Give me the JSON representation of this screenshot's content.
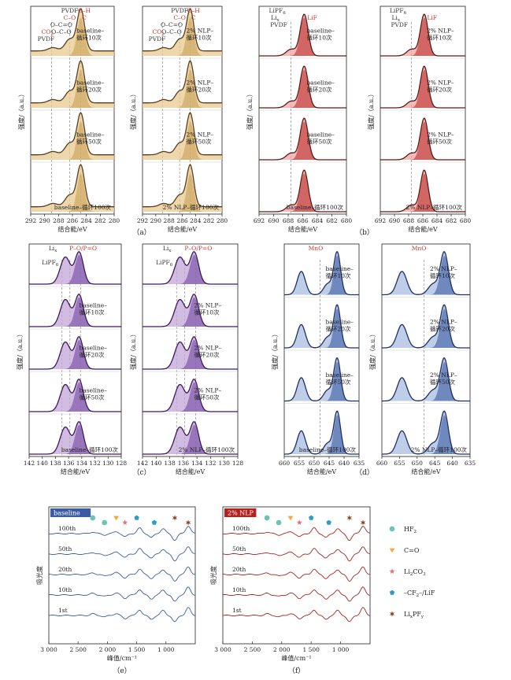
{
  "figure": {
    "panels": [
      {
        "id": "a",
        "label": "（a）",
        "ylabel": "强度/（a.u.）",
        "xlabel": "结合能/eV",
        "xlim": [
          292,
          280
        ],
        "xticks": [
          292,
          290,
          288,
          286,
          284,
          282,
          280
        ],
        "dashed_x": [
          289,
          286.4,
          284.8
        ],
        "peak_x": 284.8,
        "side_peaks": [
          {
            "x": 286.4,
            "h": 0.28
          },
          {
            "x": 288.8,
            "h": 0.08
          }
        ],
        "color": {
          "fill": "#e8c98e",
          "dark": "#c49a4e",
          "line": "#5a3d1f",
          "sat": 0.12
        },
        "annotations": [
          {
            "text": "PVDF",
            "sub": "",
            "x": 286.4,
            "row": 1,
            "color": "#333333"
          },
          {
            "text": "C–O",
            "sub": "",
            "x": 286.4,
            "row": 2,
            "color": "#c0392b"
          },
          {
            "text": "C–H",
            "sub": "",
            "x": 284.3,
            "row": 1,
            "color": "#c0392b"
          },
          {
            "text": "C",
            "sub": "",
            "x": 284.3,
            "row": 2,
            "color": "#c0392b"
          },
          {
            "text": "O–C=O",
            "sub": "",
            "x": 287.6,
            "row": 3,
            "color": "#333333"
          },
          {
            "text": "O–C–O",
            "sub": "",
            "x": 287.6,
            "row": 4,
            "color": "#333333"
          },
          {
            "text": "CO",
            "sub": "3",
            "x": 289.6,
            "row": 4,
            "color": "#c0392b"
          },
          {
            "text": "PVDF",
            "sub": "",
            "x": 289.8,
            "row": 5,
            "color": "#333333"
          }
        ],
        "subplots": [
          {
            "stack": [
              "baseline–循环10次",
              "baseline–循环20次",
              "baseline–循环50次",
              "baseline–循环100次"
            ]
          },
          {
            "stack": [
              "2% NLP–循环10次",
              "2% NLP–循环20次",
              "2% NLP–循环50次",
              "2% NLP–循环100次"
            ]
          }
        ]
      },
      {
        "id": "b",
        "label": "（b）",
        "ylabel": "强度/（a.u.）",
        "xlabel": "结合能/eV",
        "xlim": [
          692,
          680
        ],
        "xticks": [
          692,
          690,
          688,
          686,
          684,
          682,
          680
        ],
        "dashed_x": [
          687.6
        ],
        "peak_x": 685.8,
        "side_peaks": [
          {
            "x": 687.6,
            "h": 0.16
          }
        ],
        "color": {
          "fill": "#f4a3a3",
          "dark": "#b5211d",
          "line": "#5a1a16",
          "sat": 0.0
        },
        "annotations": [
          {
            "text": "LiPF",
            "sub": "6",
            "x": 689.5,
            "row": 1,
            "color": "#333333"
          },
          {
            "text": "Li",
            "sub": "x",
            "x": 689.8,
            "row": 2,
            "color": "#333333"
          },
          {
            "text": "PVDF",
            "sub": "",
            "x": 689.3,
            "row": 3,
            "color": "#333333"
          },
          {
            "text": "LiF",
            "sub": "",
            "x": 684.7,
            "row": 2,
            "color": "#c0392b"
          }
        ],
        "subplots": [
          {
            "stack": [
              "baseline–循环10次",
              "baseline–循环20次",
              "baseline–循环50次",
              "baseline–循环100次"
            ]
          },
          {
            "stack": [
              "2% NLP–循环10次",
              "2% NLP–循环20次",
              "2% NLP–循环50次",
              "2% NLP–循环100次"
            ]
          }
        ]
      },
      {
        "id": "c",
        "label": "（c）",
        "ylabel": "强度/（a.u.）",
        "xlabel": "结合能/eV",
        "xlim": [
          142,
          128
        ],
        "xticks": [
          142,
          140,
          138,
          136,
          134,
          132,
          130,
          128
        ],
        "dashed_x": [
          137,
          135.8,
          134.2
        ],
        "peak_x": 134.4,
        "side_peaks": [
          {
            "x": 136.5,
            "h": 0.85
          }
        ],
        "color": {
          "fill": "#c4a6d8",
          "dark": "#6a3d9a",
          "line": "#3b1a5e",
          "sat": 0.0
        },
        "annotations": [
          {
            "text": "Li",
            "sub": "x",
            "x": 138.4,
            "row": 1,
            "color": "#333333"
          },
          {
            "text": "LiPF",
            "sub": "6",
            "x": 138.8,
            "row": 3,
            "color": "#333333"
          },
          {
            "text": "P–O/P=O",
            "sub": "",
            "x": 133.8,
            "row": 1,
            "color": "#c0392b"
          }
        ],
        "subplots": [
          {
            "stack": [
              "",
              "baseline–循环10次",
              "baseline–循环20次",
              "baseline–循环50次",
              "baseline–循环100次"
            ]
          },
          {
            "stack": [
              "",
              "2% NLP–循环10次",
              "2% NLP–循环20次",
              "2% NLP–循环50次",
              "2% NLP–循环100次"
            ]
          }
        ]
      },
      {
        "id": "d",
        "label": "（d）",
        "ylabel": "强度/（a.u.）",
        "xlabel": "结合能/eV",
        "xlim": [
          660,
          635
        ],
        "xticks": [
          660,
          655,
          650,
          645,
          640,
          635
        ],
        "dashed_x": [
          648
        ],
        "peak_x": 642.3,
        "side_peaks": [
          {
            "x": 654.3,
            "h": 0.55
          },
          {
            "x": 645.5,
            "h": 0.25
          }
        ],
        "color": {
          "fill": "#a8bde0",
          "dark": "#2d4e9a",
          "line": "#1f2f66",
          "sat": 0.0
        },
        "annotations": [
          {
            "text": "MnO",
            "sub": "",
            "x": 649.5,
            "row": 1,
            "color": "#c0392b"
          }
        ],
        "subplots": [
          {
            "stack": [
              "baseline–循环10次",
              "baseline–循环20次",
              "baseline–循环50次",
              "baseline–循环100次"
            ]
          },
          {
            "stack": [
              "2% NLP–循环10次",
              "2% NLP–循环20次",
              "2% NLP–循环50次",
              "2% NLP–循环100次"
            ]
          }
        ]
      },
      {
        "id": "e",
        "label": "（e）",
        "ylabel": "吸光度",
        "xlabel": "峰值/cm⁻¹",
        "badge": "baseline",
        "badge_color": "#3b5ba5",
        "xlim": [
          3000,
          500
        ],
        "xticks": [
          3000,
          2500,
          2000,
          1500,
          1000
        ],
        "tick_labels": [
          "3 000",
          "2 500",
          "2 000",
          "1 500",
          "1 000"
        ],
        "line_color": "#3e5d99",
        "traces": [
          "100th",
          "50th",
          "20th",
          "10th",
          "1st"
        ],
        "markers_x": [
          2250,
          2050,
          1850,
          1700,
          1500,
          1200,
          850,
          620
        ]
      },
      {
        "id": "f",
        "label": "（f）",
        "ylabel": "吸光度",
        "xlabel": "峰值/cm⁻¹",
        "badge": "2% NLP",
        "badge_color": "#b5211d",
        "xlim": [
          3000,
          500
        ],
        "xticks": [
          3000,
          2500,
          2000,
          1500,
          1000
        ],
        "tick_labels": [
          "3 000",
          "2 500",
          "2 000",
          "1 500",
          "1 000"
        ],
        "line_color": "#a62520",
        "traces": [
          "100th",
          "50th",
          "20th",
          "10th",
          "1st"
        ],
        "markers_x": [
          2250,
          2050,
          1850,
          1700,
          1500,
          1200,
          850,
          620
        ]
      }
    ],
    "ir_legend": [
      {
        "name": "HF",
        "sub": "2",
        "marker": "circle",
        "color": "#6cc4b8"
      },
      {
        "name": "C=O",
        "sub": "",
        "marker": "triangle",
        "color": "#f2a93b"
      },
      {
        "name": "Li",
        "sub": "2",
        "name_tail": "CO",
        "sub_tail": "3",
        "marker": "star",
        "color": "#e0707a"
      },
      {
        "name": "–CF",
        "sub": "2",
        "name_tail": "–/LiF",
        "sub_tail": "",
        "marker": "pentagon",
        "color": "#2a9fc4"
      },
      {
        "name": "Li",
        "sub": "x",
        "name_tail": "PF",
        "sub_tail": "y",
        "marker": "hexstar",
        "color": "#8a4a20"
      }
    ],
    "ir_marker_sequence": [
      "circle",
      "circle",
      "triangle",
      "star",
      "pentagon",
      "pentagon",
      "hexstar",
      "hexstar"
    ]
  }
}
